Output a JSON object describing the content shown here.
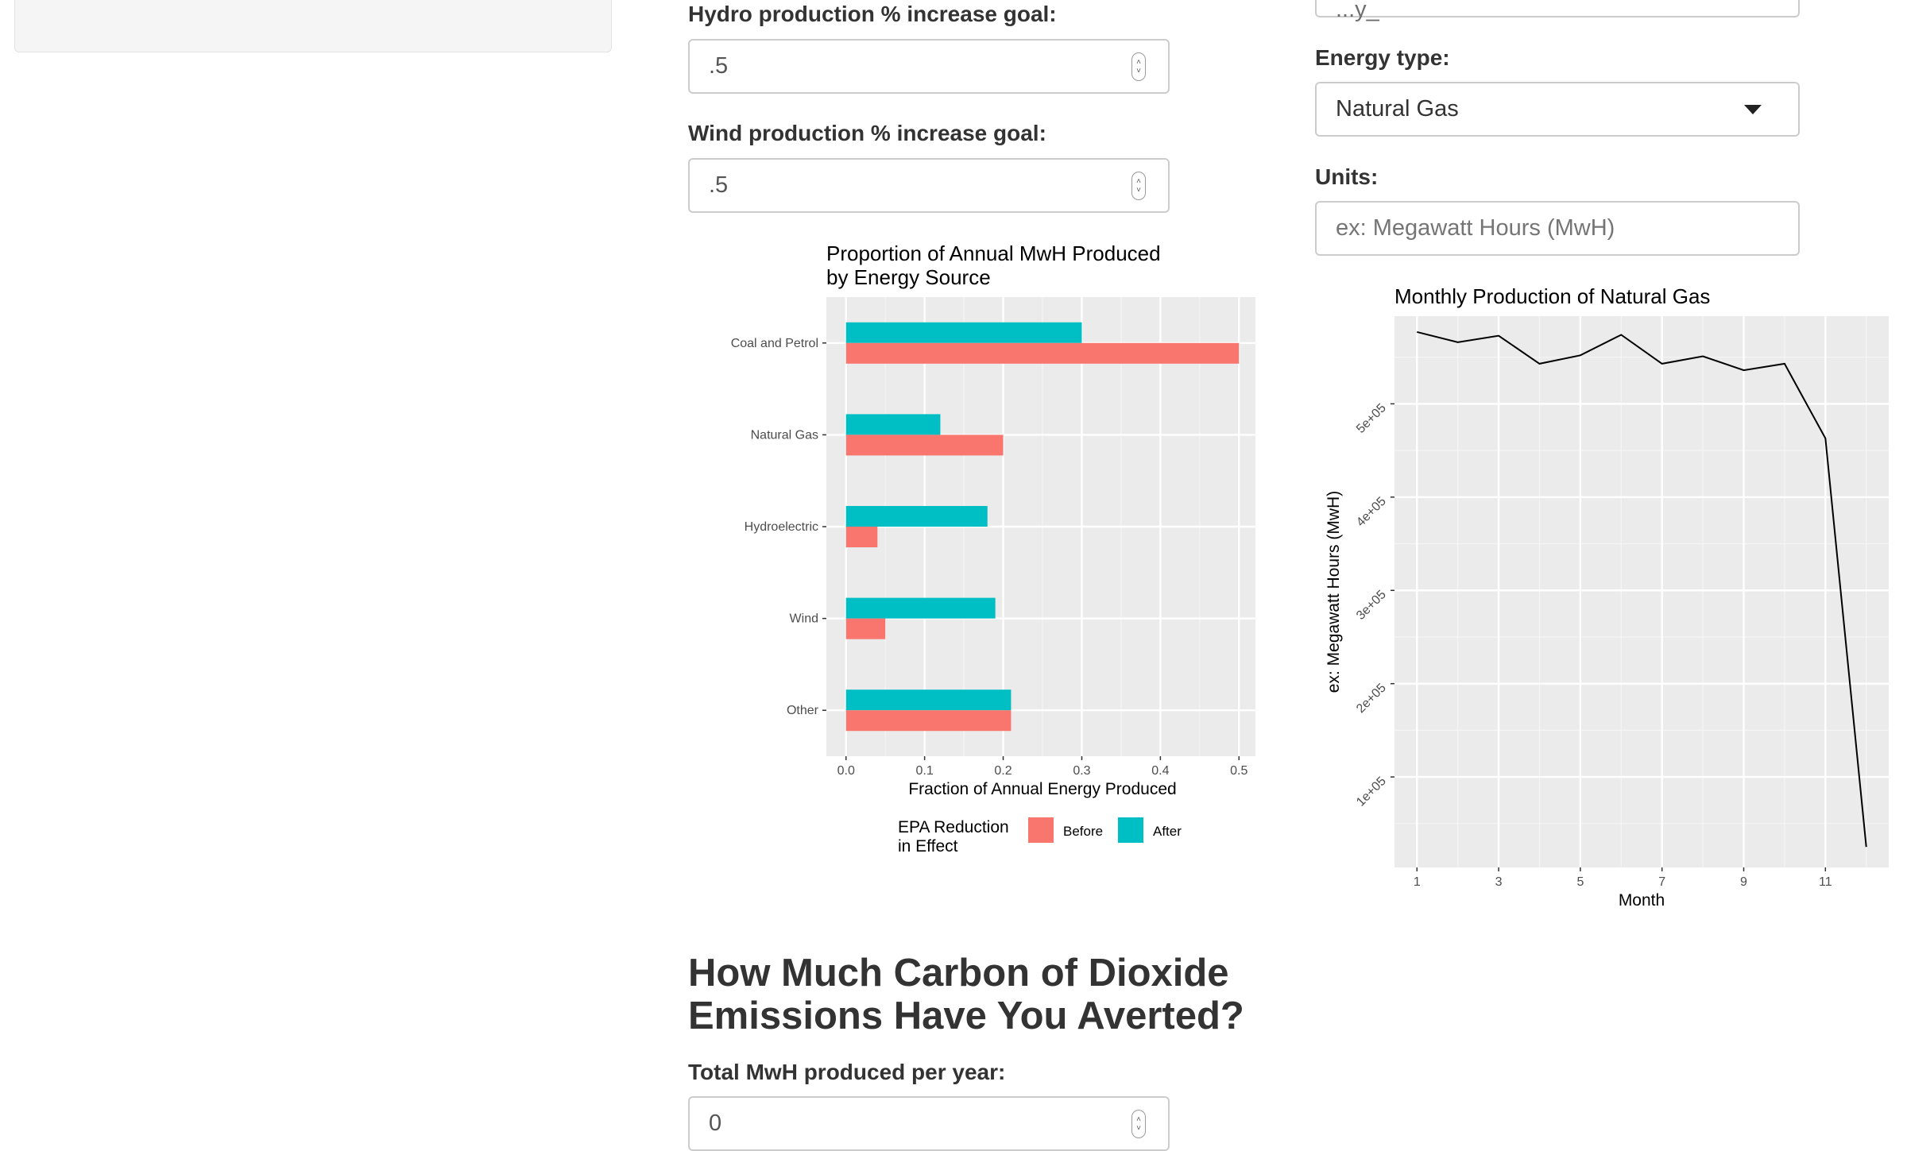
{
  "left_inputs": {
    "hydro_label": "Hydro production % increase goal:",
    "hydro_value": ".5",
    "wind_label": "Wind production % increase goal:",
    "wind_value": ".5",
    "total_label": "Total MwH produced per year:",
    "total_value": "0"
  },
  "right_inputs": {
    "top_value": "...y_",
    "energy_type_label": "Energy type:",
    "energy_type_value": "Natural Gas",
    "units_label": "Units:",
    "units_placeholder": "ex: Megawatt Hours (MwH)"
  },
  "section_heading": {
    "line1": "How Much Carbon of Dioxide",
    "line2": "Emissions Have You Averted?"
  },
  "icons": {
    "spinner": "number-spinner-icon",
    "dropdown": "caret-down-icon"
  },
  "chart_data": [
    {
      "type": "bar",
      "orientation": "horizontal",
      "title": "Proportion of Annual MwH Produced by Energy Source",
      "title_lines": [
        "Proportion of Annual MwH Produced",
        "by Energy Source"
      ],
      "xlabel": "Fraction of Annual Energy Produced",
      "ylabel": "",
      "categories": [
        "Coal and Petrol",
        "Natural Gas",
        "Hydroelectric",
        "Wind",
        "Other"
      ],
      "series": [
        {
          "name": "Before",
          "color": "#F8766D",
          "values": [
            0.5,
            0.2,
            0.04,
            0.05,
            0.21
          ]
        },
        {
          "name": "After",
          "color": "#00BFC4",
          "values": [
            0.3,
            0.12,
            0.18,
            0.19,
            0.21
          ]
        }
      ],
      "xlim": [
        -0.025,
        0.525
      ],
      "xticks": [
        0.0,
        0.1,
        0.2,
        0.3,
        0.4,
        0.5
      ],
      "xtick_labels": [
        "0.0",
        "0.1",
        "0.2",
        "0.3",
        "0.4",
        "0.5"
      ],
      "grid": true,
      "legend_title": "EPA Reduction in Effect",
      "legend_title_lines": [
        "EPA Reduction",
        "in Effect"
      ],
      "legend_position": "bottom"
    },
    {
      "type": "line",
      "title": "Monthly Production of Natural Gas",
      "xlabel": "Month",
      "ylabel": "ex: Megawatt Hours (MwH)",
      "x": [
        1,
        2,
        3,
        4,
        5,
        6,
        7,
        8,
        9,
        10,
        11,
        12
      ],
      "series": [
        {
          "values": [
            577000,
            566000,
            573000,
            543000,
            552000,
            574000,
            543000,
            551000,
            536000,
            543000,
            463000,
            25000
          ],
          "color": "#000000"
        }
      ],
      "xlim": [
        0.45,
        12.55
      ],
      "ylim": [
        3000,
        594000
      ],
      "xticks": [
        1,
        3,
        5,
        7,
        9,
        11
      ],
      "xtick_labels": [
        "1",
        "3",
        "5",
        "7",
        "9",
        "11"
      ],
      "yticks": [
        100000,
        200000,
        300000,
        400000,
        500000
      ],
      "ytick_labels": [
        "1e+05",
        "2e+05",
        "3e+05",
        "4e+05",
        "5e+05"
      ],
      "grid": true
    }
  ]
}
